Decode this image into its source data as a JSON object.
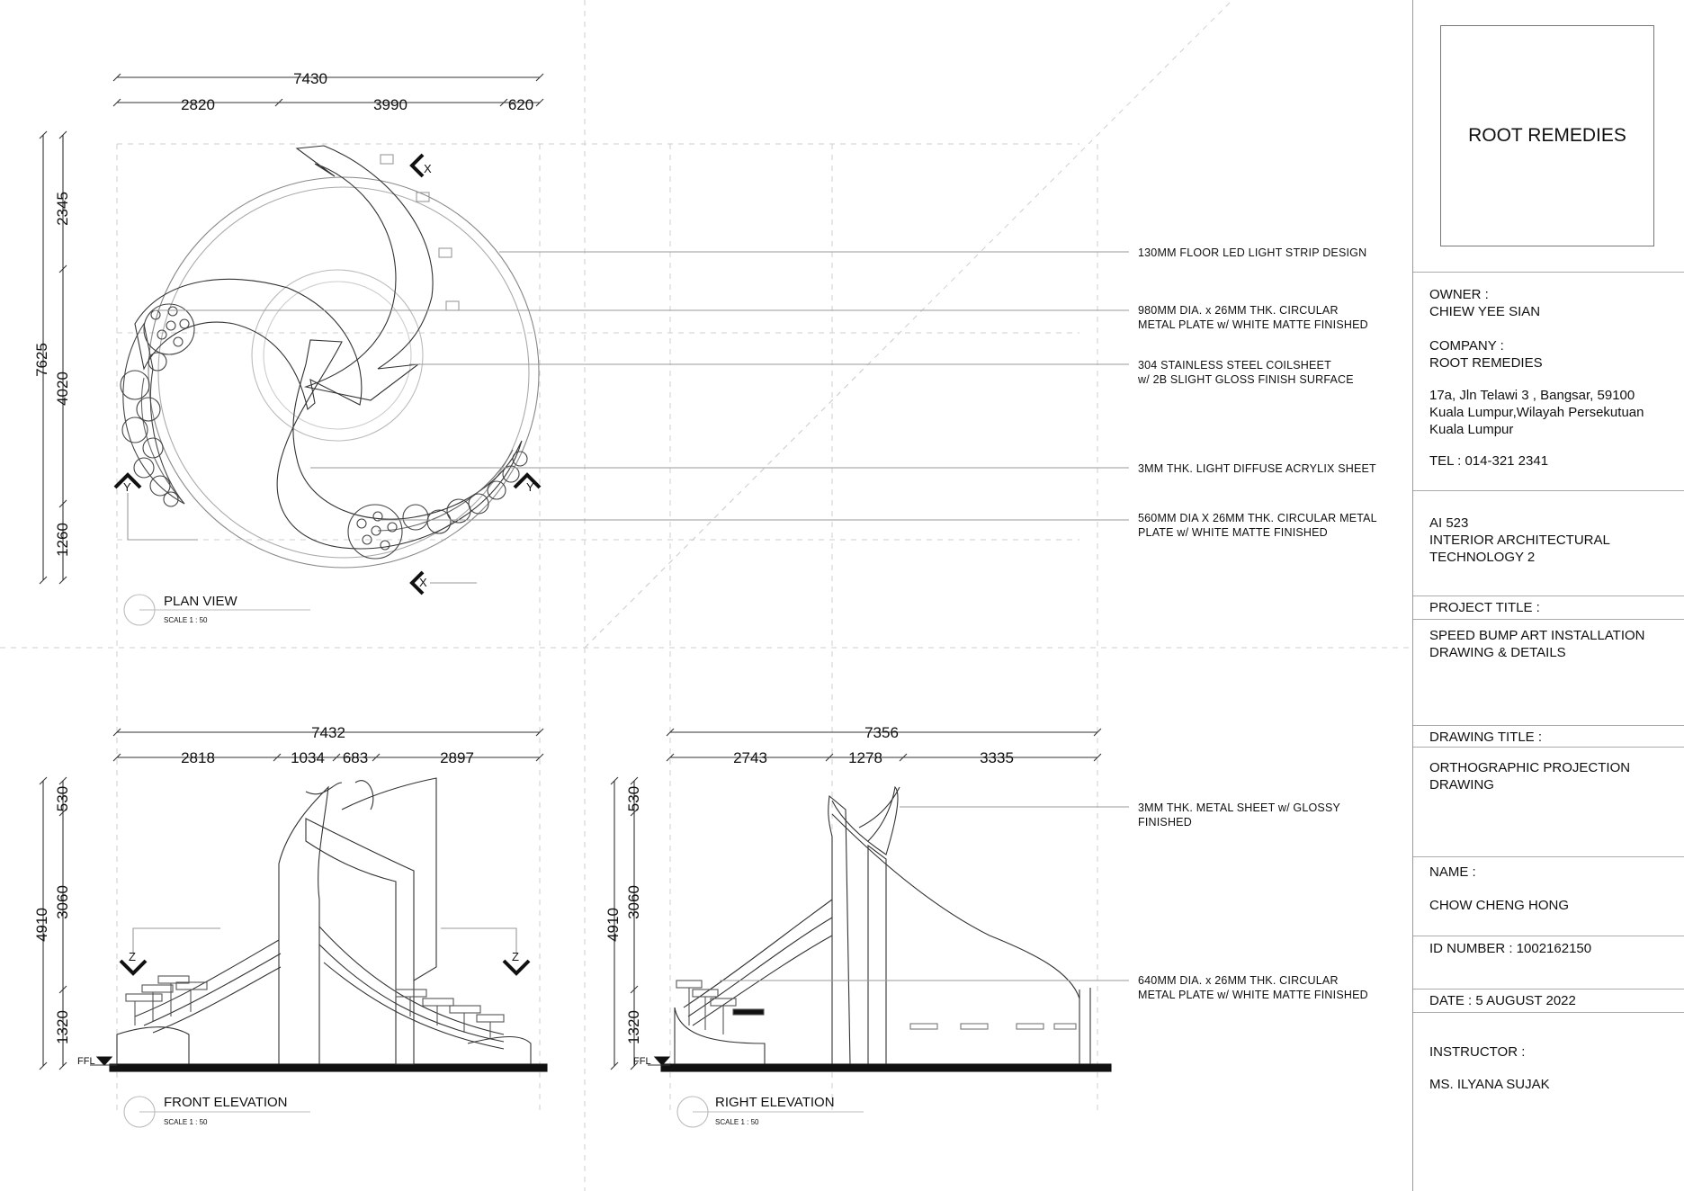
{
  "plan": {
    "dims_top": {
      "overall": "7430",
      "a": "2820",
      "b": "3990",
      "c": "620"
    },
    "dims_left": {
      "overall": "7625",
      "a": "2345",
      "b": "4020",
      "c": "1260"
    },
    "section_marks": {
      "x": "X",
      "y": "Y"
    },
    "title": "PLAN VIEW",
    "scale": "SCALE 1 : 50"
  },
  "front": {
    "dims_top": {
      "overall": "7432",
      "a": "2818",
      "b": "1034",
      "c": "683",
      "d": "2897"
    },
    "dims_left": {
      "overall": "4910",
      "a": "530",
      "b": "3060",
      "c": "1320"
    },
    "section_mark": "Z",
    "ffl": "FFL",
    "title": "FRONT ELEVATION",
    "scale": "SCALE 1 : 50"
  },
  "right": {
    "dims_top": {
      "overall": "7356",
      "a": "2743",
      "b": "1278",
      "c": "3335"
    },
    "dims_left": {
      "overall": "4910",
      "a": "530",
      "b": "3060",
      "c": "1320"
    },
    "ffl": "FFL",
    "title": "RIGHT ELEVATION",
    "scale": "SCALE 1 : 50"
  },
  "notes": {
    "n1": "130MM FLOOR LED LIGHT STRIP DESIGN",
    "n2a": "980MM DIA. x 26MM THK. CIRCULAR",
    "n2b": "METAL PLATE w/ WHITE MATTE FINISHED",
    "n3a": "304 STAINLESS STEEL COILSHEET",
    "n3b": "w/ 2B SLIGHT GLOSS FINISH SURFACE",
    "n4": "3MM THK. LIGHT DIFFUSE ACRYLIX SHEET",
    "n5a": "560MM DIA X 26MM THK. CIRCULAR METAL",
    "n5b": "PLATE w/ WHITE MATTE FINISHED",
    "n6a": "3MM THK. METAL SHEET w/ GLOSSY",
    "n6b": "FINISHED",
    "n7a": "640MM DIA. x 26MM THK. CIRCULAR",
    "n7b": "METAL PLATE w/ WHITE MATTE FINISHED"
  },
  "title_block": {
    "logo": "ROOT REMEDIES",
    "owner_label": "OWNER :",
    "owner": "CHIEW YEE SIAN",
    "company_label": "COMPANY :",
    "company": "ROOT REMEDIES",
    "address": "17a, Jln Telawi 3 , Bangsar, 59100\nKuala Lumpur,Wilayah Persekutuan\nKuala Lumpur",
    "tel": "TEL : 014-321 2341",
    "course": "AI 523\nINTERIOR ARCHITECTURAL\nTECHNOLOGY 2",
    "project_label": "PROJECT TITLE :",
    "project": "SPEED BUMP ART INSTALLATION\nDRAWING & DETAILS",
    "drawing_label": "DRAWING TITLE :",
    "drawing": "ORTHOGRAPHIC PROJECTION\nDRAWING",
    "name_label": "NAME :",
    "name": "CHOW CHENG HONG",
    "id": "ID NUMBER : 1002162150",
    "date": "DATE : 5 AUGUST 2022",
    "instructor_label": "INSTRUCTOR :",
    "instructor": "MS. ILYANA SUJAK"
  }
}
